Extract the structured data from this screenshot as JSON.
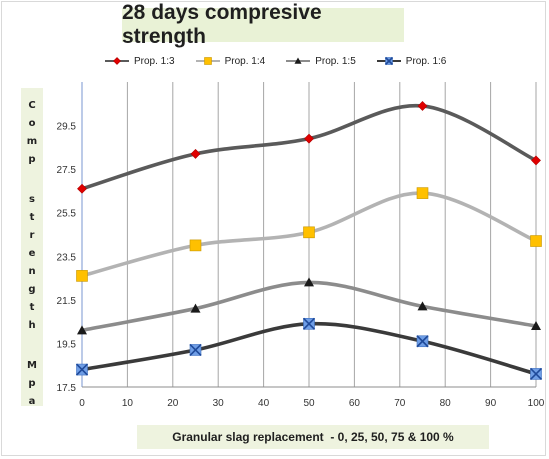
{
  "chart_data": {
    "type": "line",
    "title": "28 days compresive strength",
    "xlabel": "Granular slag replacement  - 0, 25, 50, 75 & 100 %",
    "ylabel": "Comp strength Mpa",
    "x": [
      0,
      25,
      50,
      75,
      100
    ],
    "xlim": [
      0,
      100
    ],
    "xticks": [
      0,
      10,
      20,
      30,
      40,
      50,
      60,
      70,
      80,
      90,
      100
    ],
    "ylim": [
      17.5,
      31.5
    ],
    "yticks": [
      17.5,
      19.5,
      21.5,
      23.5,
      25.5,
      27.5,
      29.5
    ],
    "grid": "vertical",
    "legend_position": "top",
    "series": [
      {
        "name": "Prop. 1:3",
        "values": [
          26.6,
          28.2,
          28.9,
          30.4,
          27.9
        ],
        "color": "#5a5a5a",
        "marker": "diamond",
        "marker_color": "#e00000"
      },
      {
        "name": "Prop. 1:4",
        "values": [
          22.6,
          24.0,
          24.6,
          26.4,
          24.2
        ],
        "color": "#b3b3b3",
        "marker": "square",
        "marker_color": "#ffc000"
      },
      {
        "name": "Prop. 1:5",
        "values": [
          20.1,
          21.1,
          22.3,
          21.2,
          20.3
        ],
        "color": "#8c8c8c",
        "marker": "triangle",
        "marker_color": "#1a1a1a"
      },
      {
        "name": "Prop. 1:6",
        "values": [
          18.3,
          19.2,
          20.4,
          19.6,
          18.1
        ],
        "color": "#3a3a3a",
        "marker": "x-square",
        "marker_color": "#4a7fd0"
      }
    ]
  }
}
